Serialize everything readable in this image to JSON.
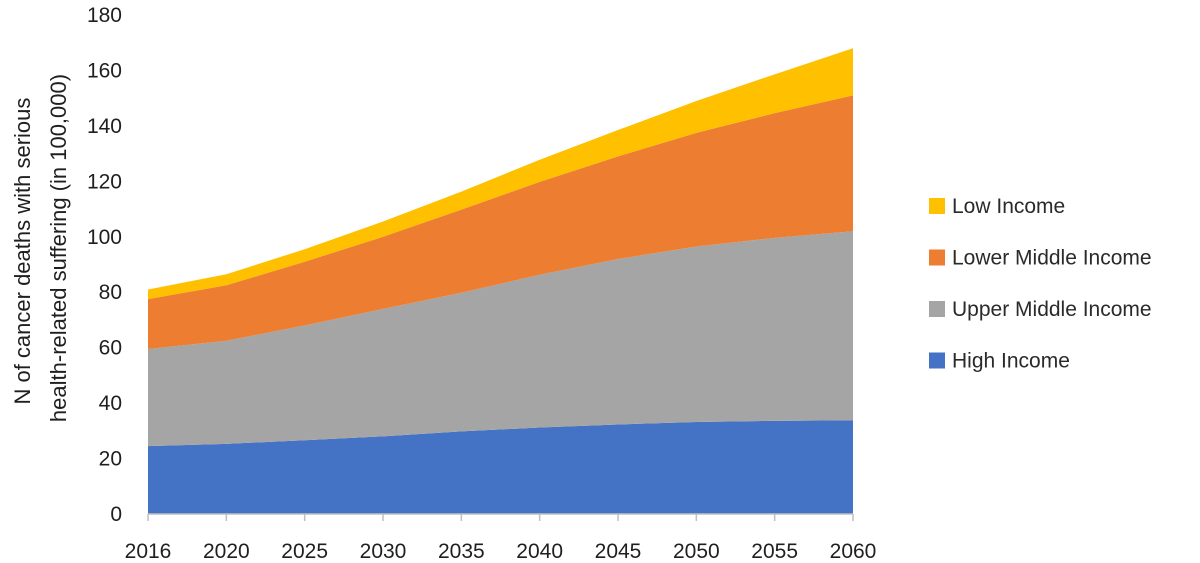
{
  "chart_data": {
    "type": "area",
    "stacked": true,
    "title": "",
    "xlabel": "",
    "ylabel_lines": [
      "N of cancer deaths with serious",
      "health-related suffering (in 100,000)"
    ],
    "x": [
      "2016",
      "2020",
      "2025",
      "2030",
      "2035",
      "2040",
      "2045",
      "2050",
      "2055",
      "2060"
    ],
    "ylim": [
      0,
      180
    ],
    "yticks": [
      0,
      20,
      40,
      60,
      80,
      100,
      120,
      140,
      160,
      180
    ],
    "grid": false,
    "legend_position": "right",
    "series": [
      {
        "name": "High Income",
        "color": "#4472C4",
        "values": [
          24.5,
          25.3,
          26.6,
          28.0,
          29.8,
          31.2,
          32.3,
          33.2,
          33.6,
          33.8
        ]
      },
      {
        "name": "Upper Middle Income",
        "color": "#A5A5A5",
        "values": [
          35.0,
          37.2,
          41.4,
          46.0,
          50.0,
          55.1,
          59.7,
          63.3,
          66.0,
          68.2
        ]
      },
      {
        "name": "Lower Middle Income",
        "color": "#ED7D31",
        "values": [
          18.0,
          20.0,
          23.0,
          26.0,
          30.0,
          33.5,
          37.0,
          41.0,
          45.0,
          49.0
        ]
      },
      {
        "name": "Low Income",
        "color": "#FFC000",
        "values": [
          3.5,
          4.0,
          4.5,
          5.5,
          6.5,
          8.0,
          9.5,
          11.5,
          14.0,
          17.0
        ]
      }
    ],
    "legend_order": [
      "Low Income",
      "Lower Middle Income",
      "Upper Middle Income",
      "High Income"
    ]
  }
}
